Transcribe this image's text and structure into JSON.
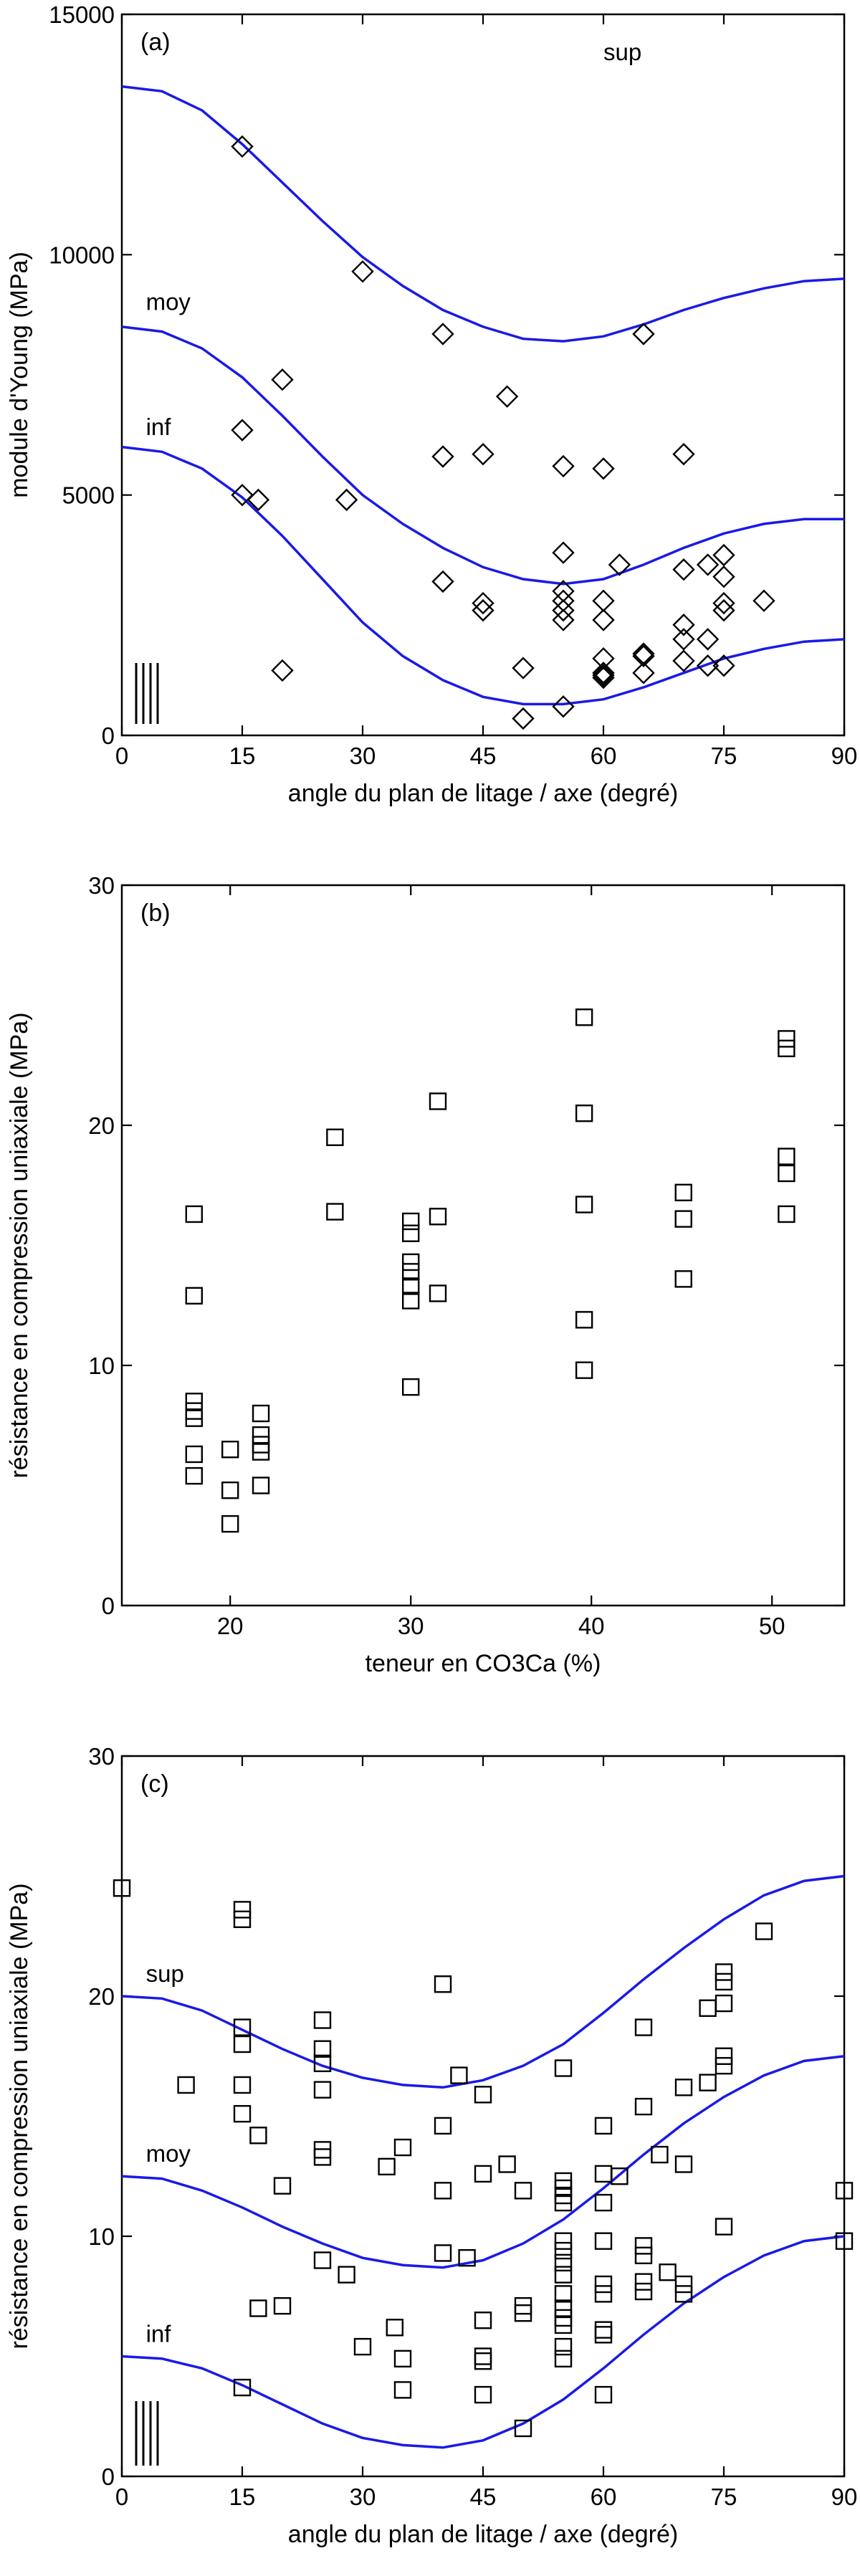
{
  "colors": {
    "curve": "#1a1ae6",
    "marker": "#000000",
    "background": "#ffffff"
  },
  "chart_data": [
    {
      "type": "scatter",
      "panel_label": "(a)",
      "xlabel": "angle du plan de litage / axe (degré)",
      "ylabel": "module d'Young (MPa)",
      "xlim": [
        0,
        90
      ],
      "ylim": [
        0,
        15000
      ],
      "xticks": [
        0,
        15,
        30,
        45,
        60,
        75,
        90
      ],
      "yticks": [
        0,
        5000,
        10000,
        15000
      ],
      "marker": "diamond",
      "points": [
        [
          15,
          12250
        ],
        [
          30,
          9650
        ],
        [
          40,
          8350
        ],
        [
          65,
          8350
        ],
        [
          20,
          7400
        ],
        [
          48,
          7050
        ],
        [
          15,
          6350
        ],
        [
          40,
          5800
        ],
        [
          45,
          5850
        ],
        [
          55,
          5600
        ],
        [
          60,
          5550
        ],
        [
          70,
          5850
        ],
        [
          15,
          5000
        ],
        [
          17,
          4900
        ],
        [
          28,
          4900
        ],
        [
          55,
          3800
        ],
        [
          62,
          3550
        ],
        [
          70,
          3450
        ],
        [
          73,
          3550
        ],
        [
          75,
          3750
        ],
        [
          40,
          3200
        ],
        [
          55,
          3000
        ],
        [
          55,
          2800
        ],
        [
          60,
          2800
        ],
        [
          75,
          3300
        ],
        [
          80,
          2800
        ],
        [
          45,
          2750
        ],
        [
          45,
          2600
        ],
        [
          55,
          2600
        ],
        [
          75,
          2750
        ],
        [
          75,
          2600
        ],
        [
          55,
          2400
        ],
        [
          60,
          2400
        ],
        [
          70,
          2300
        ],
        [
          70,
          2000
        ],
        [
          73,
          2000
        ],
        [
          60,
          1600
        ],
        [
          65,
          1700
        ],
        [
          65,
          1650
        ],
        [
          70,
          1550
        ],
        [
          73,
          1450
        ],
        [
          75,
          1450
        ],
        [
          20,
          1350
        ],
        [
          50,
          1400
        ],
        [
          60,
          1300
        ],
        [
          65,
          1300
        ],
        [
          60,
          1250
        ],
        [
          60,
          1200
        ],
        [
          55,
          600
        ],
        [
          50,
          350
        ]
      ],
      "series": [
        {
          "name": "sup",
          "x": [
            0,
            5,
            10,
            15,
            20,
            25,
            30,
            35,
            40,
            45,
            50,
            55,
            60,
            65,
            70,
            75,
            80,
            85,
            90
          ],
          "values": [
            13500,
            13400,
            13000,
            12300,
            11500,
            10700,
            9950,
            9350,
            8850,
            8500,
            8250,
            8200,
            8300,
            8550,
            8850,
            9100,
            9300,
            9450,
            9500
          ]
        },
        {
          "name": "moy",
          "x": [
            0,
            5,
            10,
            15,
            20,
            25,
            30,
            35,
            40,
            45,
            50,
            55,
            60,
            65,
            70,
            75,
            80,
            85,
            90
          ],
          "values": [
            8500,
            8400,
            8050,
            7450,
            6650,
            5800,
            5000,
            4400,
            3900,
            3500,
            3250,
            3150,
            3250,
            3550,
            3900,
            4200,
            4400,
            4500,
            4500
          ]
        },
        {
          "name": "inf",
          "x": [
            0,
            5,
            10,
            15,
            20,
            25,
            30,
            35,
            40,
            45,
            50,
            55,
            60,
            65,
            70,
            75,
            80,
            85,
            90
          ],
          "values": [
            6000,
            5900,
            5550,
            4950,
            4150,
            3250,
            2350,
            1650,
            1150,
            800,
            650,
            650,
            750,
            1000,
            1300,
            1600,
            1800,
            1950,
            2000
          ]
        }
      ]
    },
    {
      "type": "scatter",
      "panel_label": "(b)",
      "xlabel": "teneur en CO3Ca (%)",
      "ylabel": "résistance en compression uniaxiale (MPa)",
      "xlim": [
        14,
        54
      ],
      "ylim": [
        0,
        30
      ],
      "xticks": [
        20,
        30,
        40,
        50
      ],
      "yticks": [
        0,
        10,
        20,
        30
      ],
      "marker": "square",
      "points": [
        [
          18,
          16.3
        ],
        [
          18,
          12.9
        ],
        [
          18,
          8.5
        ],
        [
          18,
          8.1
        ],
        [
          18,
          7.8
        ],
        [
          18,
          6.3
        ],
        [
          18,
          5.4
        ],
        [
          20,
          6.5
        ],
        [
          20,
          4.8
        ],
        [
          20,
          3.4
        ],
        [
          21.7,
          8.0
        ],
        [
          21.7,
          7.1
        ],
        [
          21.7,
          6.7
        ],
        [
          21.7,
          6.4
        ],
        [
          21.7,
          5.0
        ],
        [
          25.8,
          19.5
        ],
        [
          25.8,
          16.4
        ],
        [
          30,
          16.0
        ],
        [
          30,
          15.5
        ],
        [
          30,
          14.3
        ],
        [
          30,
          13.9
        ],
        [
          30,
          13.3
        ],
        [
          30,
          12.7
        ],
        [
          30,
          9.1
        ],
        [
          31.5,
          21.0
        ],
        [
          31.5,
          16.2
        ],
        [
          31.5,
          13.0
        ],
        [
          39.6,
          24.5
        ],
        [
          39.6,
          20.5
        ],
        [
          39.6,
          16.7
        ],
        [
          39.6,
          11.9
        ],
        [
          39.6,
          9.8
        ],
        [
          45.1,
          17.2
        ],
        [
          45.1,
          16.1
        ],
        [
          45.1,
          13.6
        ],
        [
          50.8,
          23.6
        ],
        [
          50.8,
          23.2
        ],
        [
          50.8,
          18.7
        ],
        [
          50.8,
          18.0
        ],
        [
          50.8,
          16.3
        ]
      ]
    },
    {
      "type": "scatter",
      "panel_label": "(c)",
      "xlabel": "angle du plan de litage / axe (degré)",
      "ylabel": "résistance en compression uniaxiale (MPa)",
      "xlim": [
        0,
        90
      ],
      "ylim": [
        0,
        30
      ],
      "xticks": [
        0,
        15,
        30,
        45,
        60,
        75,
        90
      ],
      "yticks": [
        0,
        10,
        20,
        30
      ],
      "marker": "square",
      "points": [
        [
          0,
          24.5
        ],
        [
          8,
          16.3
        ],
        [
          15,
          23.6
        ],
        [
          15,
          23.2
        ],
        [
          15,
          18.7
        ],
        [
          15,
          18.0
        ],
        [
          15,
          16.3
        ],
        [
          15,
          15.1
        ],
        [
          17,
          14.2
        ],
        [
          25,
          19.0
        ],
        [
          25,
          17.8
        ],
        [
          25,
          17.2
        ],
        [
          25,
          16.1
        ],
        [
          25,
          13.6
        ],
        [
          25,
          13.3
        ],
        [
          20,
          12.1
        ],
        [
          35,
          13.7
        ],
        [
          33,
          12.9
        ],
        [
          40,
          20.5
        ],
        [
          40,
          14.6
        ],
        [
          40,
          11.9
        ],
        [
          42,
          16.7
        ],
        [
          45,
          15.9
        ],
        [
          45,
          12.6
        ],
        [
          48,
          13.0
        ],
        [
          50,
          11.9
        ],
        [
          55,
          17.0
        ],
        [
          55,
          12.3
        ],
        [
          55,
          12.0
        ],
        [
          55,
          11.7
        ],
        [
          55,
          11.4
        ],
        [
          55,
          9.8
        ],
        [
          55,
          9.4
        ],
        [
          55,
          8.9
        ],
        [
          55,
          8.4
        ],
        [
          55,
          7.6
        ],
        [
          55,
          7.0
        ],
        [
          55,
          6.6
        ],
        [
          55,
          6.3
        ],
        [
          55,
          5.4
        ],
        [
          55,
          4.9
        ],
        [
          60,
          14.6
        ],
        [
          60,
          12.6
        ],
        [
          60,
          11.4
        ],
        [
          60,
          9.8
        ],
        [
          60,
          8.0
        ],
        [
          60,
          7.6
        ],
        [
          60,
          6.1
        ],
        [
          60,
          5.9
        ],
        [
          60,
          3.4
        ],
        [
          62,
          12.5
        ],
        [
          65,
          18.7
        ],
        [
          65,
          15.4
        ],
        [
          65,
          9.6
        ],
        [
          65,
          9.2
        ],
        [
          65,
          8.1
        ],
        [
          65,
          7.7
        ],
        [
          67,
          13.4
        ],
        [
          68,
          8.5
        ],
        [
          70,
          16.2
        ],
        [
          70,
          13.0
        ],
        [
          70,
          8.0
        ],
        [
          70,
          7.6
        ],
        [
          73,
          19.5
        ],
        [
          73,
          16.4
        ],
        [
          75,
          21.0
        ],
        [
          75,
          20.6
        ],
        [
          75,
          19.7
        ],
        [
          75,
          17.5
        ],
        [
          75,
          17.1
        ],
        [
          75,
          10.4
        ],
        [
          80,
          22.7
        ],
        [
          90,
          11.9
        ],
        [
          90,
          9.8
        ],
        [
          40,
          9.3
        ],
        [
          43,
          9.1
        ],
        [
          25,
          9.0
        ],
        [
          28,
          8.4
        ],
        [
          45,
          6.5
        ],
        [
          45,
          5.0
        ],
        [
          45,
          4.8
        ],
        [
          45,
          3.4
        ],
        [
          50,
          7.1
        ],
        [
          50,
          6.8
        ],
        [
          50,
          2.0
        ],
        [
          35,
          4.9
        ],
        [
          35,
          3.6
        ],
        [
          34,
          6.2
        ],
        [
          30,
          5.4
        ],
        [
          17,
          7.0
        ],
        [
          20,
          7.1
        ],
        [
          15,
          3.7
        ]
      ],
      "series": [
        {
          "name": "sup",
          "x": [
            0,
            5,
            10,
            15,
            20,
            25,
            30,
            35,
            40,
            45,
            50,
            55,
            60,
            65,
            70,
            75,
            80,
            85,
            90
          ],
          "values": [
            20.0,
            19.9,
            19.4,
            18.6,
            17.8,
            17.1,
            16.6,
            16.3,
            16.2,
            16.5,
            17.1,
            18.0,
            19.3,
            20.7,
            22.0,
            23.2,
            24.2,
            24.8,
            25.0
          ]
        },
        {
          "name": "moy",
          "x": [
            0,
            5,
            10,
            15,
            20,
            25,
            30,
            35,
            40,
            45,
            50,
            55,
            60,
            65,
            70,
            75,
            80,
            85,
            90
          ],
          "values": [
            12.5,
            12.4,
            11.9,
            11.2,
            10.4,
            9.7,
            9.1,
            8.8,
            8.7,
            9.0,
            9.7,
            10.7,
            12.0,
            13.4,
            14.7,
            15.8,
            16.7,
            17.3,
            17.5
          ]
        },
        {
          "name": "inf",
          "x": [
            0,
            5,
            10,
            15,
            20,
            25,
            30,
            35,
            40,
            45,
            50,
            55,
            60,
            65,
            70,
            75,
            80,
            85,
            90
          ],
          "values": [
            5.0,
            4.9,
            4.5,
            3.8,
            3.0,
            2.2,
            1.6,
            1.3,
            1.2,
            1.5,
            2.2,
            3.2,
            4.5,
            5.9,
            7.2,
            8.3,
            9.2,
            9.8,
            10.0
          ]
        }
      ]
    }
  ]
}
